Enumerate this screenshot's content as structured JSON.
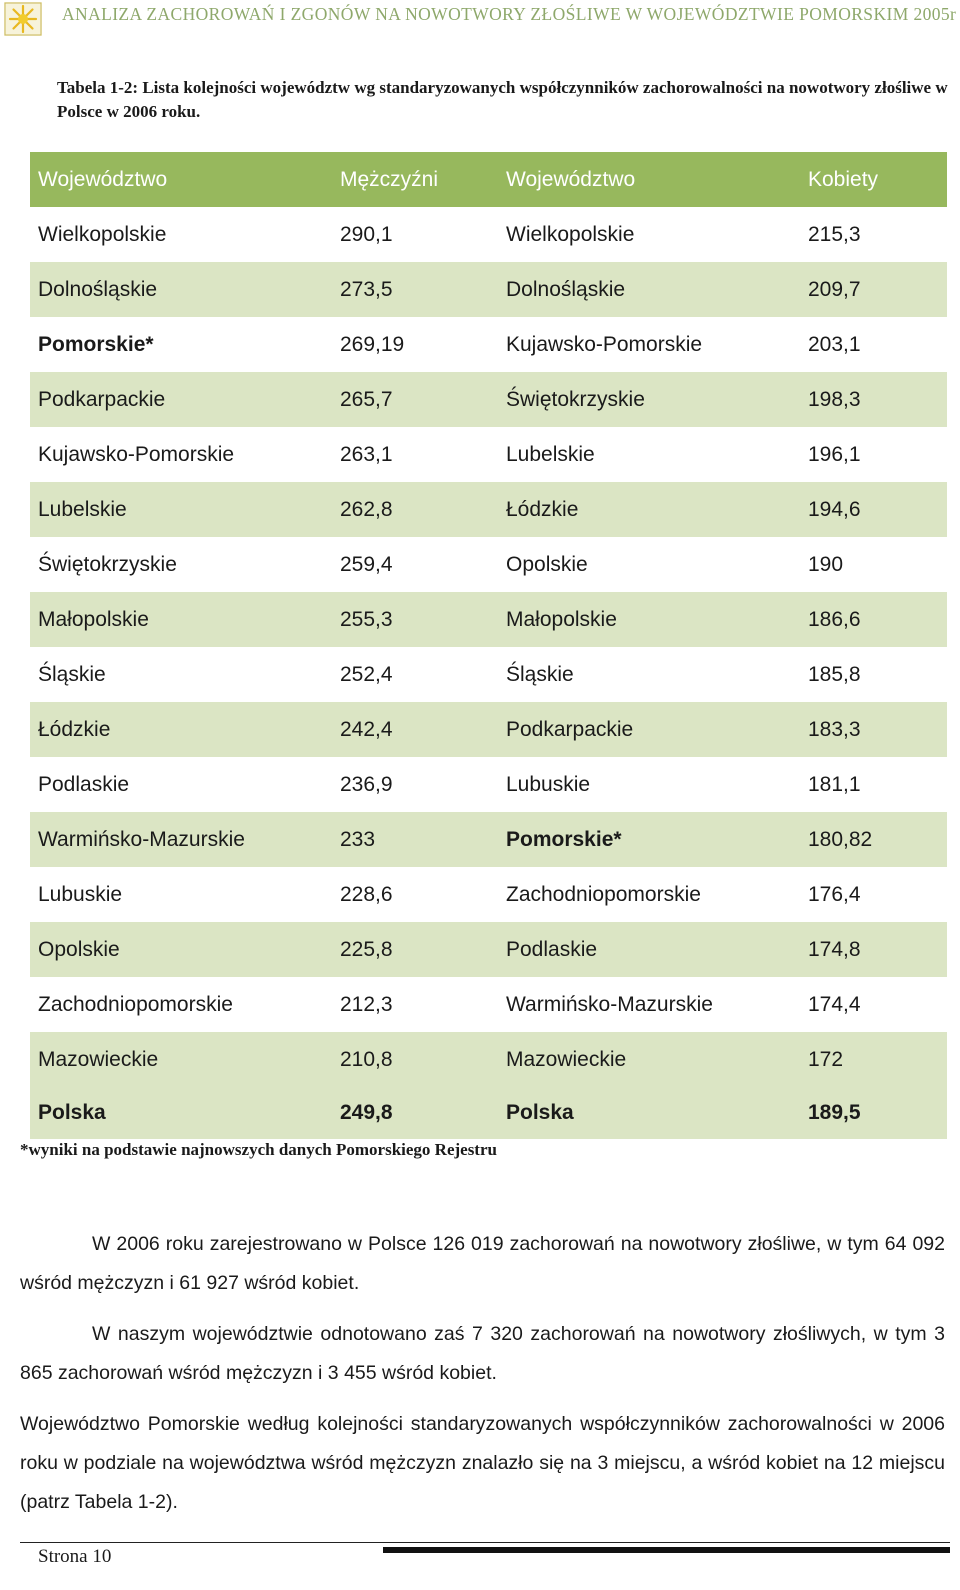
{
  "header": {
    "title": "ANALIZA ZACHOROWAŃ I ZGONÓW NA NOWOTWORY ZŁOŚLIWE W  WOJEWÓDZTWIE POMORSKIM 2005r",
    "logo_icon": "sun-logo-icon",
    "accent_color": "#8ea86b"
  },
  "caption": "Tabela 1-2: Lista kolejności województw wg standaryzowanych współczynników zachorowalności na nowotwory złośliwe w Polsce w 2006 roku.",
  "table": {
    "header_color": "#97b85d",
    "stripe_color": "#dbe5c4",
    "headers": [
      "Województwo",
      "Mężczyźni",
      "Województwo",
      "Kobiety"
    ],
    "rows": [
      {
        "w1": "Wielkopolskie",
        "m": "290,1",
        "w2": "Wielkopolskie",
        "k": "215,3"
      },
      {
        "w1": "Dolnośląskie",
        "m": "273,5",
        "w2": "Dolnośląskie",
        "k": "209,7"
      },
      {
        "w1": "Pomorskie*",
        "m": "269,19",
        "w2": "Kujawsko-Pomorskie",
        "k": "203,1"
      },
      {
        "w1": "Podkarpackie",
        "m": "265,7",
        "w2": "Świętokrzyskie",
        "k": "198,3"
      },
      {
        "w1": "Kujawsko-Pomorskie",
        "m": "263,1",
        "w2": "Lubelskie",
        "k": "196,1"
      },
      {
        "w1": "Lubelskie",
        "m": "262,8",
        "w2": "Łódzkie",
        "k": "194,6"
      },
      {
        "w1": "Świętokrzyskie",
        "m": "259,4",
        "w2": "Opolskie",
        "k": "190"
      },
      {
        "w1": "Małopolskie",
        "m": "255,3",
        "w2": "Małopolskie",
        "k": "186,6"
      },
      {
        "w1": "Śląskie",
        "m": "252,4",
        "w2": "Śląskie",
        "k": "185,8"
      },
      {
        "w1": "Łódzkie",
        "m": "242,4",
        "w2": "Podkarpackie",
        "k": "183,3"
      },
      {
        "w1": "Podlaskie",
        "m": "236,9",
        "w2": "Lubuskie",
        "k": "181,1"
      },
      {
        "w1": "Warmińsko-Mazurskie",
        "m": "233",
        "w2": "Pomorskie*",
        "k": "180,82"
      },
      {
        "w1": "Lubuskie",
        "m": "228,6",
        "w2": "Zachodniopomorskie",
        "k": "176,4"
      },
      {
        "w1": "Opolskie",
        "m": "225,8",
        "w2": "Podlaskie",
        "k": "174,8"
      },
      {
        "w1": "Zachodniopomorskie",
        "m": "212,3",
        "w2": "Warmińsko-Mazurskie",
        "k": "174,4"
      },
      {
        "w1": "Mazowieckie",
        "m": "210,8",
        "w2": "Mazowieckie",
        "k": "172"
      }
    ],
    "total": {
      "w1": "Polska",
      "m": "249,8",
      "w2": "Polska",
      "k": "189,5"
    }
  },
  "footnote": "*wyniki na podstawie najnowszych danych Pomorskiego Rejestru",
  "paragraphs": [
    "W 2006 roku zarejestrowano w Polsce 126 019 zachorowań na nowotwory złośliwe, w tym 64 092 wśród mężczyzn i 61 927 wśród kobiet.",
    "W naszym województwie odnotowano zaś 7 320 zachorowań na nowotwory złośliwych, w tym 3 865 zachorowań wśród mężczyzn i 3 455 wśród kobiet.",
    "Województwo Pomorskie według kolejności standaryzowanych współczynników zachorowalności w 2006 roku w podziale na województwa wśród mężczyzn znalazło się na 3 miejscu, a wśród kobiet na 12 miejscu (patrz Tabela 1-2)."
  ],
  "footer": {
    "page": "Strona 10"
  }
}
